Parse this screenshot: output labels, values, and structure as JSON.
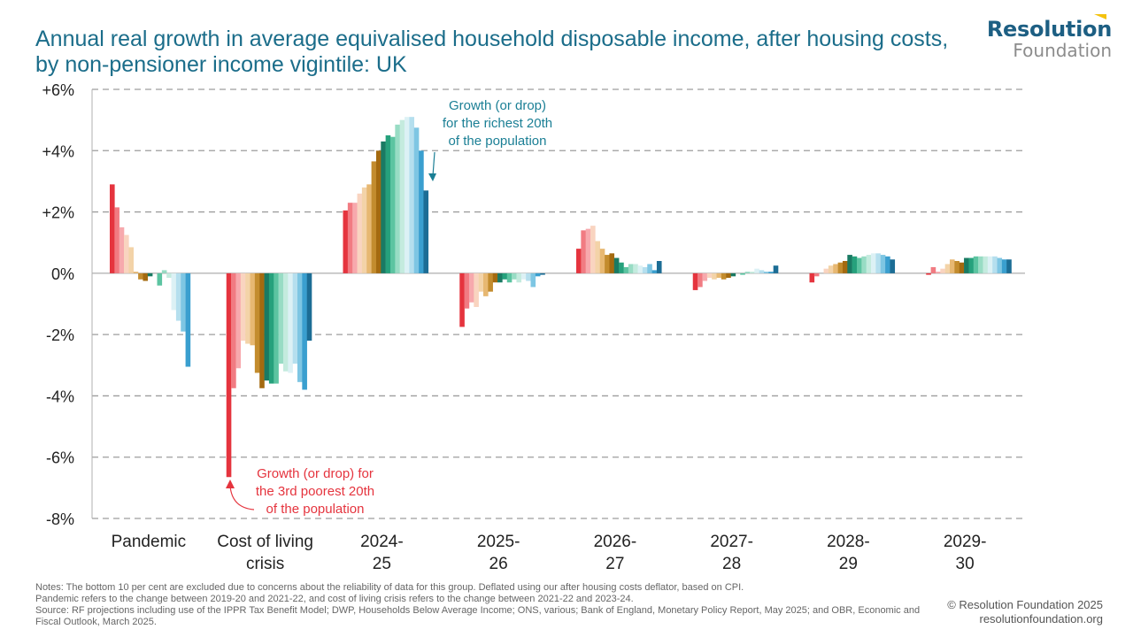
{
  "header": {
    "title": "Annual real growth in average equivalised household disposable income, after housing costs, by non-pensioner income vigintile: UK",
    "logo_top": "Resolution",
    "logo_bottom": "Foundation"
  },
  "footer": {
    "notes_1": "Notes: The bottom 10 per cent are excluded due to concerns about the reliability of data for this group. Deflated using our after housing costs deflator, based on CPI.",
    "notes_2": "Pandemic refers to the change between 2019-20 and 2021-22, and cost of living crisis refers to the change between 2021-22 and 2023-24.",
    "notes_3": "Source: RF projections including use of the IPPR Tax Benefit Model; DWP, Households Below Average Income; ONS, various; Bank of England, Monetary Policy Report, May 2025; and OBR, Economic and Fiscal Outlook, March 2025.",
    "copyright": "© Resolution Foundation 2025",
    "website": "resolutionfoundation.org"
  },
  "chart_data": {
    "type": "bar",
    "ylim": [
      -8,
      6
    ],
    "yticks": [
      6,
      4,
      2,
      0,
      -2,
      -4,
      -6,
      -8
    ],
    "ytick_labels": [
      "+6%",
      "+4%",
      "+2%",
      "0%",
      "-2%",
      "-4%",
      "-6%",
      "-8%"
    ],
    "grid": true,
    "categories": [
      [
        "Pandemic"
      ],
      [
        "Cost of living",
        "crisis"
      ],
      [
        "2024-",
        "25"
      ],
      [
        "2025-",
        "26"
      ],
      [
        "2026-",
        "27"
      ],
      [
        "2027-",
        "28"
      ],
      [
        "2028-",
        "29"
      ],
      [
        "2029-",
        "30"
      ]
    ],
    "bar_colors": [
      "#e5343e",
      "#f17b82",
      "#f7a9ad",
      "#f9d4c0",
      "#f3d3a8",
      "#e7b872",
      "#c38c2e",
      "#a46a10",
      "#1a7a63",
      "#26a17c",
      "#5cc4a1",
      "#98dcc4",
      "#c4ebde",
      "#dcf1f5",
      "#b5dfee",
      "#7ec6e3",
      "#3a9fcf",
      "#1c6d95"
    ],
    "values": [
      [
        2.9,
        2.15,
        1.5,
        1.25,
        0.85,
        0.05,
        -0.2,
        -0.25,
        -0.1,
        0.0,
        -0.4,
        0.1,
        -0.15,
        -1.2,
        -1.55,
        -1.9,
        -3.05,
        0.0
      ],
      [
        -6.65,
        -3.75,
        -3.1,
        -2.2,
        -2.3,
        -2.35,
        -3.25,
        -3.75,
        -3.5,
        -3.6,
        -3.6,
        -2.95,
        -3.2,
        -3.25,
        -2.95,
        -3.55,
        -3.8,
        -2.2
      ],
      [
        2.05,
        2.3,
        2.3,
        2.6,
        2.8,
        2.9,
        3.65,
        4.0,
        4.3,
        4.5,
        4.45,
        4.85,
        5.0,
        5.1,
        5.1,
        4.75,
        4.0,
        2.7
      ],
      [
        -1.75,
        -1.15,
        -0.95,
        -1.1,
        -0.6,
        -0.75,
        -0.6,
        -0.3,
        -0.3,
        -0.2,
        -0.3,
        -0.2,
        -0.3,
        -0.2,
        -0.25,
        -0.45,
        -0.1,
        -0.05
      ],
      [
        0.8,
        1.4,
        1.45,
        1.55,
        1.05,
        0.8,
        0.6,
        0.65,
        0.5,
        0.35,
        0.2,
        0.3,
        0.3,
        0.25,
        0.2,
        0.3,
        0.1,
        0.4
      ],
      [
        -0.55,
        -0.45,
        -0.25,
        -0.15,
        -0.2,
        -0.15,
        -0.2,
        -0.15,
        -0.1,
        0.0,
        -0.05,
        0.05,
        0.05,
        0.15,
        0.1,
        0.05,
        0.05,
        0.25
      ],
      [
        -0.3,
        -0.1,
        0.0,
        0.15,
        0.25,
        0.3,
        0.35,
        0.4,
        0.6,
        0.55,
        0.5,
        0.55,
        0.6,
        0.65,
        0.65,
        0.6,
        0.55,
        0.45
      ],
      [
        -0.05,
        0.2,
        0.05,
        0.15,
        0.3,
        0.45,
        0.4,
        0.35,
        0.5,
        0.5,
        0.55,
        0.55,
        0.55,
        0.55,
        0.55,
        0.5,
        0.45,
        0.45
      ]
    ],
    "annotations": [
      {
        "lines": [
          "Growth (or drop)",
          "for the richest 20th",
          "of the population"
        ],
        "color": "#1b7f95",
        "category": 2,
        "bar": 17
      },
      {
        "lines": [
          "Growth (or drop) for",
          "the 3rd poorest 20th",
          "of the population"
        ],
        "color": "#e5343e",
        "category": 1,
        "bar": 0
      }
    ]
  }
}
